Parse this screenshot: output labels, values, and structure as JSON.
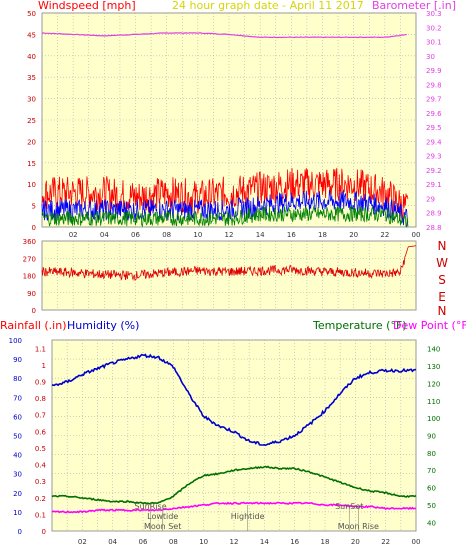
{
  "header": {
    "windspeed_label": "Windspeed [mph]",
    "title": "24 hour graph date - April 11 2017",
    "barometer_label": "Barometer [.in]"
  },
  "direction_letters": [
    "N",
    "W",
    "S",
    "E",
    "N"
  ],
  "bottom_header": {
    "rainfall_label": "Rainfall (.in)",
    "humidity_label": "Humidity (%)",
    "temperature_label": "Temperature (°F)",
    "dewpoint_label": "Dew Point (°F)"
  },
  "colors": {
    "plot_bg": "#ffffcc",
    "grid": "#b0b0b0",
    "windspeed": "#ff0000",
    "windgust": "#0000ff",
    "windavg": "#008000",
    "barometer": "#e040e0",
    "direction": "#e00000",
    "humidity": "#0000cc",
    "temperature": "#007000",
    "dewpoint": "#ff00ff",
    "rainfall": "#ff0000",
    "title": "#d6d600",
    "axis_text": "#333333"
  },
  "chart_data": [
    {
      "type": "line",
      "name": "wind-barometer",
      "x_ticks": [
        "02",
        "04",
        "06",
        "08",
        "10",
        "12",
        "14",
        "16",
        "18",
        "20",
        "22",
        "00"
      ],
      "y_left_ticks": [
        "0",
        "5",
        "10",
        "15",
        "20",
        "25",
        "30",
        "35",
        "40",
        "45",
        "50"
      ],
      "y_right_ticks": [
        "28.8",
        "28.9",
        "29",
        "29.1",
        "29.2",
        "29.3",
        "29.4",
        "29.5",
        "29.6",
        "29.7",
        "29.8",
        "29.9",
        "30",
        "30.1",
        "30.2",
        "30.3"
      ],
      "ylim_left": [
        0,
        50
      ],
      "ylim_right": [
        28.8,
        30.3
      ],
      "series": [
        {
          "key": "barometer",
          "axis": "right",
          "x": [
            0,
            2,
            4,
            6,
            8,
            10,
            12,
            14,
            16,
            18,
            20,
            22,
            23.5
          ],
          "y": [
            30.16,
            30.15,
            30.14,
            30.15,
            30.16,
            30.16,
            30.15,
            30.13,
            30.13,
            30.13,
            30.13,
            30.13,
            30.15
          ]
        },
        {
          "key": "windspeed",
          "axis": "left",
          "x": [
            0,
            2,
            4,
            6,
            8,
            10,
            12,
            14,
            16,
            18,
            20,
            22,
            23.5
          ],
          "y": [
            8,
            8,
            8,
            7,
            8,
            7,
            8,
            9,
            10,
            10,
            10,
            8,
            4
          ]
        },
        {
          "key": "windgust",
          "axis": "left",
          "x": [
            0,
            2,
            4,
            6,
            8,
            10,
            12,
            14,
            16,
            18,
            20,
            22,
            23.5
          ],
          "y": [
            4,
            4,
            4,
            4,
            4,
            4,
            4,
            5,
            6,
            6,
            6,
            5,
            2
          ]
        },
        {
          "key": "windavg",
          "axis": "left",
          "x": [
            0,
            2,
            4,
            6,
            8,
            10,
            12,
            14,
            16,
            18,
            20,
            22,
            23.5
          ],
          "y": [
            2,
            2,
            2,
            2,
            2,
            2,
            2,
            3,
            3,
            3,
            3,
            3,
            1
          ]
        }
      ],
      "xlim": [
        0,
        24
      ]
    },
    {
      "type": "line",
      "name": "wind-direction",
      "y_ticks": [
        "360",
        "270",
        "180",
        "90",
        "0"
      ],
      "ylim": [
        0,
        360
      ],
      "series": [
        {
          "key": "direction",
          "x": [
            0,
            2,
            4,
            6,
            8,
            10,
            12,
            14,
            16,
            18,
            20,
            22,
            23,
            23.5,
            24
          ],
          "y": [
            200,
            195,
            185,
            180,
            195,
            205,
            200,
            205,
            210,
            200,
            195,
            190,
            195,
            330,
            335
          ]
        }
      ],
      "xlim": [
        0,
        24
      ]
    },
    {
      "type": "line",
      "name": "humidity-temperature",
      "x_ticks": [
        "02",
        "04",
        "06",
        "08",
        "10",
        "12",
        "14",
        "16",
        "18",
        "20",
        "22",
        "00"
      ],
      "y_left_outer_ticks": [
        "0",
        "10",
        "20",
        "30",
        "40",
        "50",
        "60",
        "70",
        "80",
        "90",
        "100"
      ],
      "y_left_inner_ticks": [
        "0",
        "0.1",
        "0.2",
        "0.3",
        "0.4",
        "0.5",
        "0.6",
        "0.7",
        "0.8",
        "0.9",
        "1",
        "1.1"
      ],
      "y_right_ticks": [
        "40",
        "50",
        "60",
        "70",
        "80",
        "90",
        "100",
        "110",
        "120",
        "130",
        "140"
      ],
      "ylim_humidity": [
        0,
        100
      ],
      "ylim_temperature": [
        35,
        145
      ],
      "series": [
        {
          "key": "humidity",
          "x": [
            0,
            1,
            2,
            3,
            4,
            5,
            6,
            7,
            8,
            9,
            10,
            11,
            12,
            13,
            14,
            15,
            16,
            17,
            18,
            19,
            20,
            21,
            22,
            23,
            24
          ],
          "y": [
            76,
            78,
            82,
            85,
            88,
            90,
            92,
            91,
            86,
            72,
            60,
            55,
            52,
            47,
            45,
            47,
            50,
            56,
            63,
            72,
            80,
            83,
            84,
            84,
            84
          ]
        },
        {
          "key": "temperature",
          "x": [
            0,
            1,
            2,
            3,
            4,
            5,
            6,
            7,
            8,
            9,
            10,
            11,
            12,
            13,
            14,
            15,
            16,
            17,
            18,
            19,
            20,
            21,
            22,
            23,
            24
          ],
          "y": [
            55,
            55,
            54,
            53,
            52,
            52,
            51,
            51,
            55,
            62,
            67,
            68,
            70,
            71,
            72,
            71,
            71,
            69,
            66,
            63,
            60,
            58,
            57,
            55,
            55
          ]
        },
        {
          "key": "dewpoint",
          "x": [
            0,
            1,
            2,
            3,
            4,
            5,
            6,
            7,
            8,
            9,
            10,
            11,
            12,
            13,
            14,
            15,
            16,
            17,
            18,
            19,
            20,
            21,
            22,
            23,
            24
          ],
          "y": [
            46,
            46,
            46,
            47,
            47,
            47,
            47,
            47,
            48,
            49,
            50,
            51,
            51,
            51,
            51,
            51,
            51,
            51,
            50,
            50,
            49,
            49,
            48,
            48,
            48
          ]
        }
      ],
      "xlim": [
        0,
        24
      ],
      "markers": [
        {
          "label": "SunRise",
          "x": 6.5,
          "row": 0
        },
        {
          "label": "Lowtide",
          "x": 7.3,
          "row": 1
        },
        {
          "label": "Moon Set",
          "x": 7.3,
          "row": 2
        },
        {
          "label": "Hightide",
          "x": 12.9,
          "row": 1
        },
        {
          "label": "SunSet",
          "x": 19.6,
          "row": 0
        },
        {
          "label": "Moon Rise",
          "x": 20.2,
          "row": 2
        }
      ]
    }
  ]
}
